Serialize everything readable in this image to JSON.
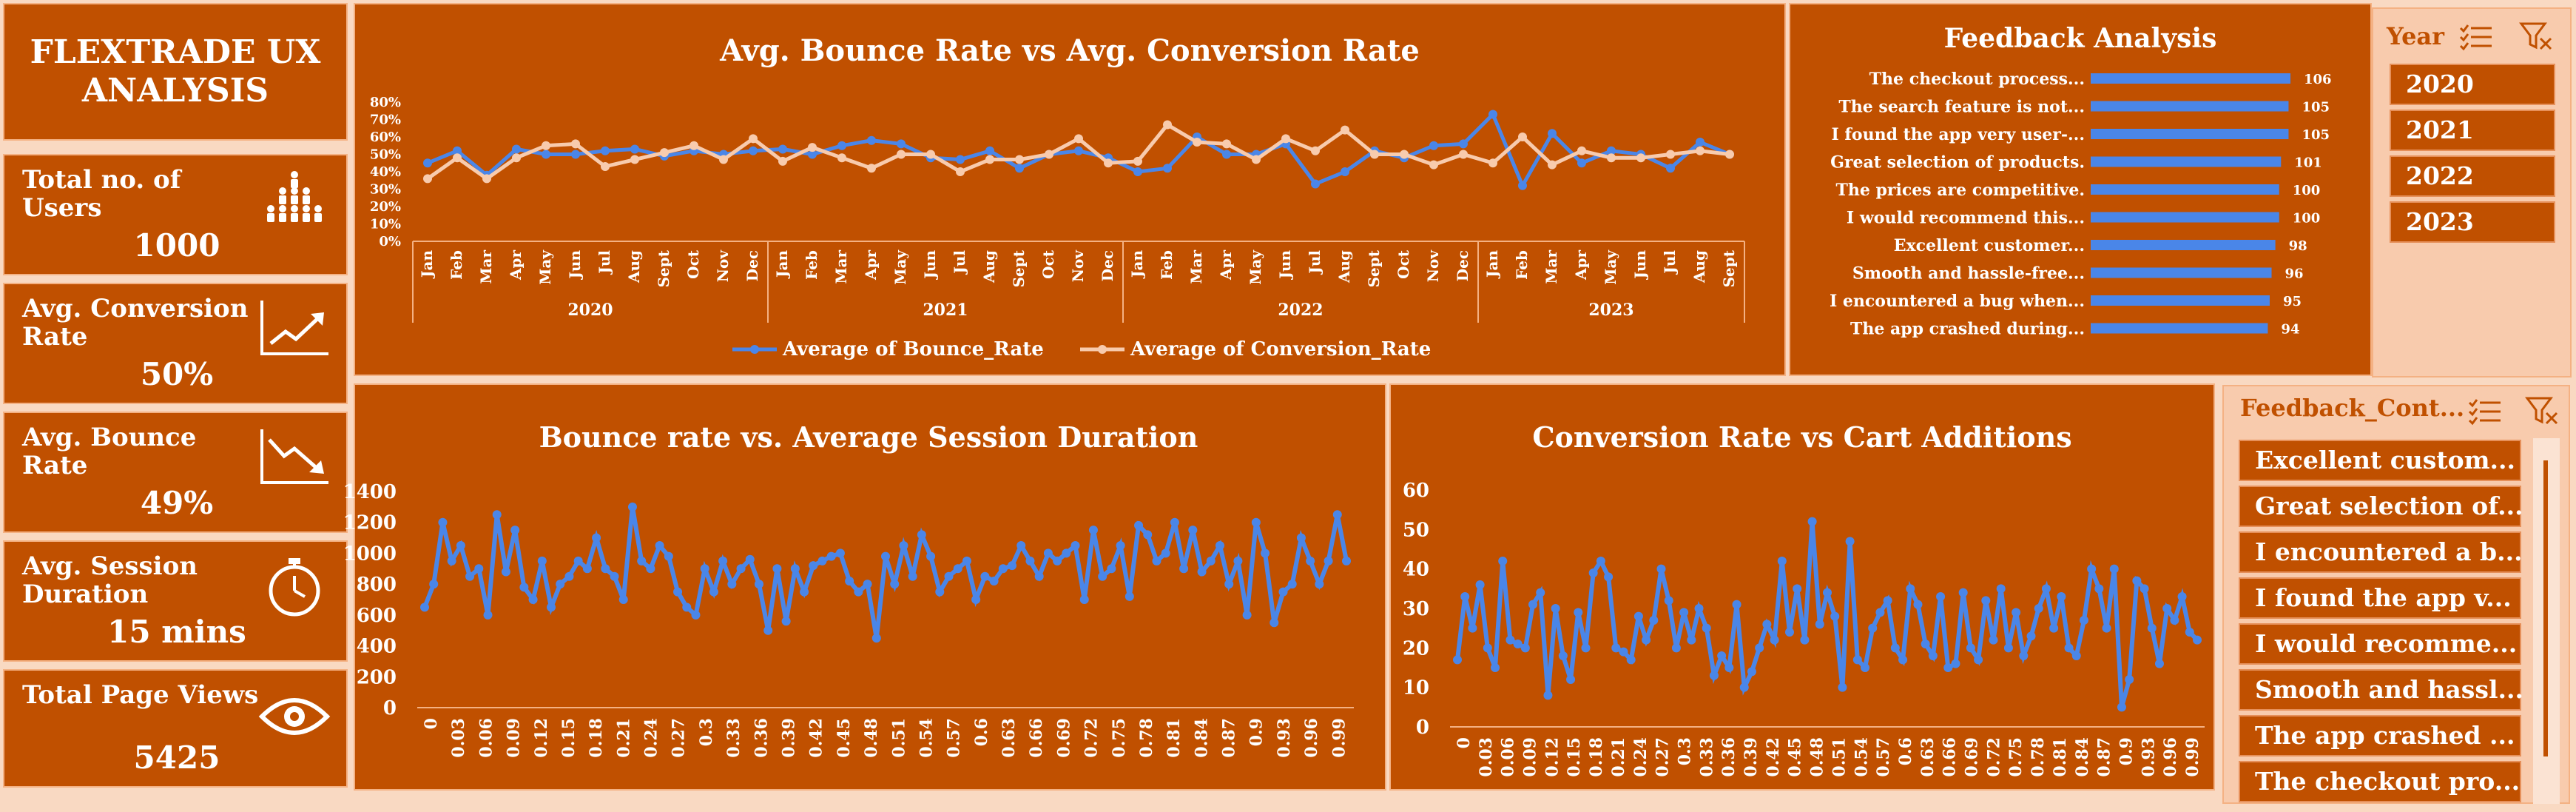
{
  "dashboard": {
    "title_line1": "FLEXTRADE UX",
    "title_line2": "ANALYSIS"
  },
  "kpis": [
    {
      "label": "Total no. of Users",
      "value": "1000",
      "icon": "users-group-icon"
    },
    {
      "label": "Avg. Conversion Rate",
      "value": "50%",
      "icon": "trend-up-icon"
    },
    {
      "label": "Avg. Bounce Rate",
      "value": "49%",
      "icon": "trend-down-icon"
    },
    {
      "label": "Avg. Session Duration",
      "value": "15 mins",
      "icon": "stopwatch-icon"
    },
    {
      "label": "Total Page Views",
      "value": "5425",
      "icon": "eye-icon"
    }
  ],
  "colors": {
    "panel": "#C05000",
    "background": "#F9D9C2",
    "bounce": "#4A86E8",
    "conversion": "#F8CBAD",
    "slicer": "#F8CBAD"
  },
  "chart_data": [
    {
      "type": "line",
      "title": "Avg. Bounce Rate vs Avg. Conversion Rate",
      "ylim": [
        0,
        80
      ],
      "yticks": [
        "0%",
        "10%",
        "20%",
        "30%",
        "40%",
        "50%",
        "60%",
        "70%",
        "80%"
      ],
      "years": [
        "2020",
        "2021",
        "2022",
        "2023"
      ],
      "months": [
        "Jan",
        "Feb",
        "Mar",
        "Apr",
        "May",
        "Jun",
        "Jul",
        "Aug",
        "Sept",
        "Oct",
        "Nov",
        "Dec",
        "Jan",
        "Feb",
        "Mar",
        "Apr",
        "May",
        "Jun",
        "Jul",
        "Aug",
        "Sept",
        "Oct",
        "Nov",
        "Dec",
        "Jan",
        "Feb",
        "Mar",
        "Apr",
        "May",
        "Jun",
        "Jul",
        "Aug",
        "Sept",
        "Oct",
        "Nov",
        "Dec",
        "Jan",
        "Feb",
        "Mar",
        "Apr",
        "May",
        "Jun",
        "Jul",
        "Aug",
        "Sept"
      ],
      "series": [
        {
          "name": "Average of Bounce_Rate",
          "values": [
            45,
            52,
            38,
            53,
            50,
            50,
            52,
            53,
            49,
            52,
            50,
            52,
            53,
            50,
            55,
            58,
            56,
            48,
            47,
            52,
            42,
            50,
            52,
            48,
            40,
            42,
            60,
            50,
            50,
            56,
            33,
            40,
            52,
            48,
            55,
            56,
            73,
            32,
            62,
            45,
            52,
            50,
            42,
            57,
            50
          ]
        },
        {
          "name": "Average of Conversion_Rate",
          "values": [
            36,
            48,
            36,
            48,
            55,
            56,
            43,
            47,
            51,
            55,
            47,
            59,
            46,
            54,
            48,
            42,
            50,
            50,
            40,
            47,
            47,
            50,
            59,
            45,
            46,
            67,
            57,
            56,
            47,
            59,
            52,
            64,
            50,
            50,
            44,
            50,
            45,
            60,
            44,
            52,
            48,
            48,
            50,
            52,
            50
          ]
        }
      ]
    },
    {
      "type": "table",
      "title": "Feedback Analysis",
      "categories": [
        "The checkout process...",
        "The search feature is not...",
        "I found the app very user-...",
        "Great selection of products.",
        "The prices are competitive.",
        "I would recommend this...",
        "Excellent customer...",
        "Smooth and hassle-free...",
        "I encountered a bug when...",
        "The app crashed during..."
      ],
      "values": [
        106,
        105,
        105,
        101,
        100,
        100,
        98,
        96,
        95,
        94
      ]
    },
    {
      "type": "line",
      "title": "Bounce rate vs. Average Session Duration",
      "ylim": [
        0,
        1400
      ],
      "yticks": [
        "0",
        "200",
        "400",
        "600",
        "800",
        "1000",
        "1200",
        "1400"
      ],
      "xticks": [
        "0",
        "0.03",
        "0.06",
        "0.09",
        "0.12",
        "0.15",
        "0.18",
        "0.21",
        "0.24",
        "0.27",
        "0.3",
        "0.33",
        "0.36",
        "0.39",
        "0.42",
        "0.45",
        "0.48",
        "0.51",
        "0.54",
        "0.57",
        "0.6",
        "0.63",
        "0.66",
        "0.69",
        "0.72",
        "0.75",
        "0.78",
        "0.81",
        "0.84",
        "0.87",
        "0.9",
        "0.93",
        "0.96",
        "0.99"
      ],
      "values": [
        650,
        800,
        1200,
        950,
        1050,
        850,
        900,
        600,
        1250,
        880,
        1150,
        780,
        700,
        950,
        650,
        800,
        850,
        950,
        900,
        1100,
        900,
        850,
        700,
        1300,
        950,
        900,
        1050,
        980,
        750,
        650,
        600,
        900,
        750,
        950,
        800,
        900,
        960,
        800,
        500,
        900,
        560,
        900,
        750,
        920,
        950,
        980,
        1000,
        820,
        750,
        800,
        450,
        980,
        800,
        1050,
        850,
        1120,
        980,
        750,
        850,
        900,
        950,
        700,
        850,
        820,
        900,
        920,
        1050,
        950,
        850,
        1000,
        950,
        1000,
        1050,
        700,
        1150,
        850,
        900,
        1050,
        720,
        1180,
        1120,
        950,
        1000,
        1200,
        900,
        1150,
        880,
        950,
        1050,
        800,
        950,
        600,
        1200,
        1000,
        550,
        750,
        800,
        1100,
        950,
        800,
        950,
        1250,
        950
      ]
    },
    {
      "type": "line",
      "title": "Conversion Rate vs Cart Additions",
      "ylim": [
        0,
        60
      ],
      "yticks": [
        "0",
        "10",
        "20",
        "30",
        "40",
        "50",
        "60"
      ],
      "xticks": [
        "0",
        "0.03",
        "0.06",
        "0.09",
        "0.12",
        "0.15",
        "0.18",
        "0.21",
        "0.24",
        "0.27",
        "0.3",
        "0.33",
        "0.36",
        "0.39",
        "0.42",
        "0.45",
        "0.48",
        "0.51",
        "0.54",
        "0.57",
        "0.6",
        "0.63",
        "0.66",
        "0.69",
        "0.72",
        "0.75",
        "0.78",
        "0.81",
        "0.84",
        "0.87",
        "0.9",
        "0.93",
        "0.96",
        "0.99"
      ],
      "values": [
        17,
        33,
        25,
        36,
        20,
        15,
        42,
        22,
        21,
        20,
        31,
        34,
        8,
        30,
        18,
        12,
        29,
        20,
        39,
        42,
        38,
        20,
        19,
        17,
        28,
        22,
        27,
        40,
        32,
        20,
        29,
        22,
        30,
        25,
        13,
        18,
        15,
        31,
        10,
        14,
        20,
        26,
        22,
        42,
        24,
        35,
        22,
        52,
        26,
        34,
        28,
        10,
        47,
        17,
        15,
        25,
        29,
        32,
        20,
        17,
        35,
        31,
        21,
        18,
        33,
        15,
        16,
        34,
        20,
        17,
        32,
        22,
        35,
        20,
        29,
        18,
        23,
        30,
        35,
        25,
        33,
        20,
        18,
        27,
        40,
        35,
        25,
        40,
        5,
        12,
        37,
        35,
        25,
        16,
        30,
        27,
        33,
        24,
        22
      ]
    }
  ],
  "slicers": {
    "year": {
      "header": "Year",
      "items": [
        "2020",
        "2021",
        "2022",
        "2023"
      ]
    },
    "feedback": {
      "header": "Feedback_Cont...",
      "items": [
        "Excellent custom...",
        "Great selection of...",
        "I encountered a b...",
        "I found the app v...",
        "I would recomme...",
        "Smooth and hassl...",
        "The app crashed ...",
        "The checkout pro..."
      ]
    }
  }
}
